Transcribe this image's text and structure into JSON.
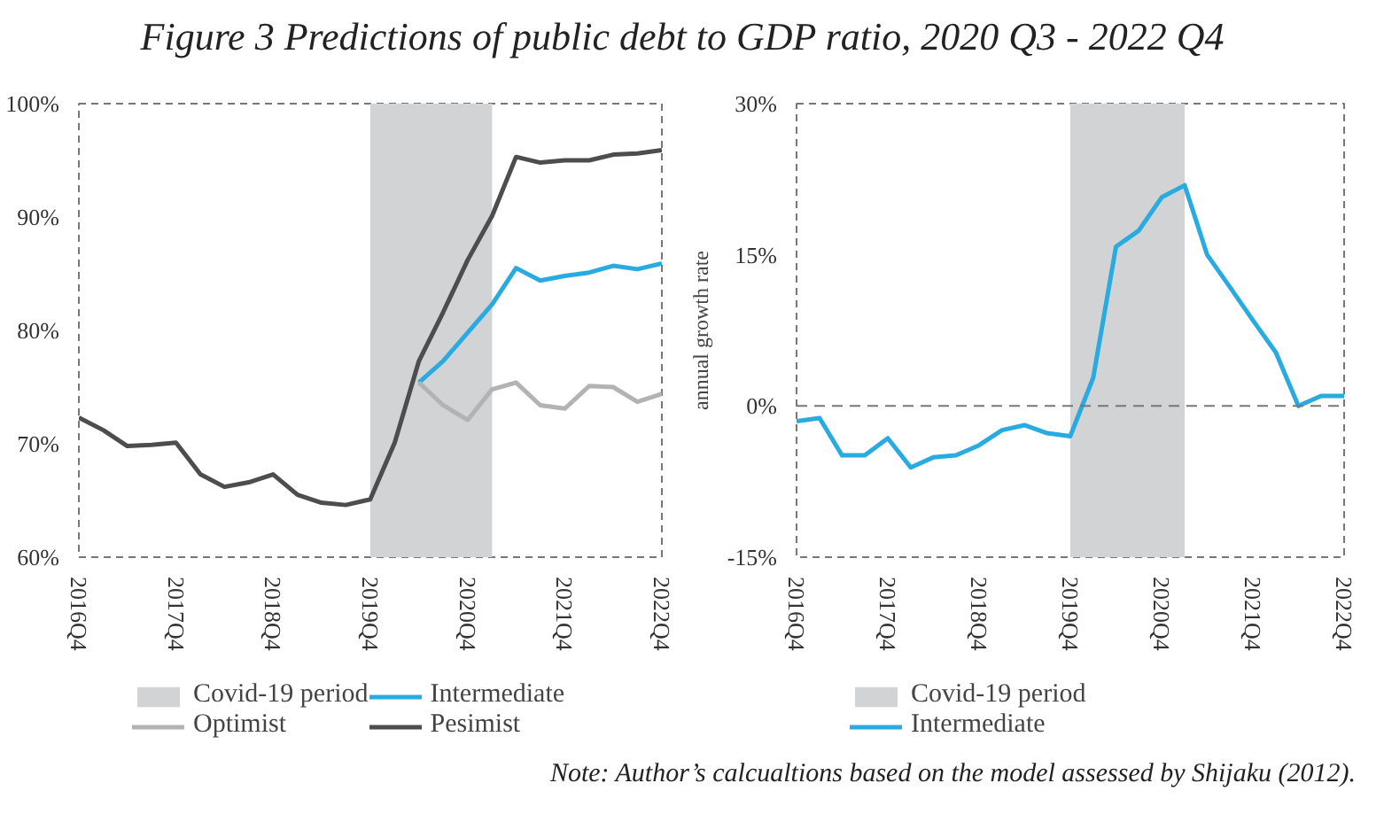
{
  "chart_data": [
    {
      "type": "line",
      "title": "Figure 3 Predictions of public debt to GDP ratio, 2020 Q3 - 2022 Q4",
      "x": [
        "2016-10",
        "2017-01",
        "2017-04",
        "2017-07",
        "2017-10",
        "2018-01",
        "2018-04",
        "2018-07",
        "2018-10",
        "2019-01",
        "2019-04",
        "2019-07",
        "2019-10",
        "2020-01",
        "2020-04",
        "2020-07",
        "2020-10",
        "2021-01",
        "2021-04",
        "2021-07",
        "2021-10",
        "2022-01",
        "2022-04",
        "2022-07",
        "2022-10"
      ],
      "series": [
        {
          "name": "Pesimist",
          "color": "#4d4d4d",
          "values": [
            72.3,
            71.2,
            69.8,
            69.9,
            70.1,
            67.3,
            66.2,
            66.6,
            67.3,
            65.5,
            64.8,
            64.6,
            65.1,
            70.1,
            77.3,
            81.6,
            86.2,
            90.1,
            95.3,
            94.8,
            95.0,
            95.0,
            95.5,
            95.6,
            95.9
          ]
        },
        {
          "name": "Intermediate",
          "color": "#29abe2",
          "x": [
            "2020-04",
            "2020-07",
            "2020-10",
            "2021-01",
            "2021-04",
            "2021-07",
            "2021-10",
            "2022-01",
            "2022-04",
            "2022-07",
            "2022-10"
          ],
          "values": [
            75.4,
            77.3,
            79.8,
            82.3,
            85.5,
            84.4,
            84.8,
            85.1,
            85.7,
            85.4,
            85.9
          ]
        },
        {
          "name": "Optimist",
          "color": "#b3b3b3",
          "x": [
            "2020-04",
            "2020-07",
            "2020-10",
            "2021-01",
            "2021-04",
            "2021-07",
            "2021-10",
            "2022-01",
            "2022-04",
            "2022-07",
            "2022-10"
          ],
          "values": [
            75.4,
            73.4,
            72.1,
            74.8,
            75.4,
            73.4,
            73.1,
            75.1,
            75.0,
            73.7,
            74.4
          ]
        }
      ],
      "bands": [
        {
          "axis": "x",
          "from": "2019-10",
          "to": "2021-01",
          "label": "Covid-19 period",
          "color": "#d1d3d4"
        }
      ],
      "xlim": [
        "2016-10",
        "2022-10"
      ],
      "xticks": [
        {
          "value": "2016-10",
          "label": "2016Q4"
        },
        {
          "value": "2017-10",
          "label": "2017Q4"
        },
        {
          "value": "2018-10",
          "label": "2018Q4"
        },
        {
          "value": "2019-10",
          "label": "2019Q4"
        },
        {
          "value": "2020-10",
          "label": "2020Q4"
        },
        {
          "value": "2021-10",
          "label": "2021Q4"
        },
        {
          "value": "2022-10",
          "label": "2022Q4"
        }
      ],
      "ylim": [
        60,
        100
      ],
      "yticks": [
        {
          "value": 60,
          "label": "60%"
        },
        {
          "value": 70,
          "label": "70%"
        },
        {
          "value": 80,
          "label": "80%"
        },
        {
          "value": 90,
          "label": "90%"
        },
        {
          "value": 100,
          "label": "100%"
        }
      ],
      "grid": false,
      "legend": "bottom"
    },
    {
      "type": "line",
      "ylabel": "annual growth rate",
      "x": [
        "2016-10",
        "2017-01",
        "2017-04",
        "2017-07",
        "2017-10",
        "2018-01",
        "2018-04",
        "2018-07",
        "2018-10",
        "2019-01",
        "2019-04",
        "2019-07",
        "2019-10",
        "2020-01",
        "2020-04",
        "2020-07",
        "2020-10",
        "2021-01",
        "2021-04",
        "2021-07",
        "2021-10",
        "2022-01",
        "2022-04",
        "2022-07",
        "2022-10"
      ],
      "series": [
        {
          "name": "Intermediate",
          "color": "#29abe2",
          "values": [
            -1.5,
            -1.2,
            -4.9,
            -4.9,
            -3.2,
            -6.1,
            -5.1,
            -4.9,
            -3.9,
            -2.4,
            -1.9,
            -2.7,
            -3.0,
            2.8,
            15.8,
            17.4,
            20.7,
            21.9,
            15.0,
            11.8,
            8.5,
            5.3,
            0.0,
            1.0,
            1.0
          ]
        }
      ],
      "bands": [
        {
          "axis": "x",
          "from": "2019-10",
          "to": "2021-01",
          "label": "Covid-19 period",
          "color": "#d1d3d4"
        }
      ],
      "ref_lines": [
        {
          "axis": "y",
          "value": 0,
          "line_style": "dashed",
          "color": "#777777"
        }
      ],
      "xlim": [
        "2016-10",
        "2022-10"
      ],
      "xticks": [
        {
          "value": "2016-10",
          "label": "2016Q4"
        },
        {
          "value": "2017-10",
          "label": "2017Q4"
        },
        {
          "value": "2018-10",
          "label": "2018Q4"
        },
        {
          "value": "2019-10",
          "label": "2019Q4"
        },
        {
          "value": "2020-10",
          "label": "2020Q4"
        },
        {
          "value": "2021-10",
          "label": "2021Q4"
        },
        {
          "value": "2022-10",
          "label": "2022Q4"
        }
      ],
      "ylim": [
        -15,
        30
      ],
      "yticks": [
        {
          "value": -15,
          "label": "-15%"
        },
        {
          "value": 0,
          "label": "0%"
        },
        {
          "value": 15,
          "label": "15%"
        },
        {
          "value": 30,
          "label": "30%"
        }
      ],
      "grid": false,
      "legend": "bottom",
      "annotations": [
        "Note: Author’s calcualtions based on the model assessed by Shijaku (2012)."
      ]
    }
  ]
}
